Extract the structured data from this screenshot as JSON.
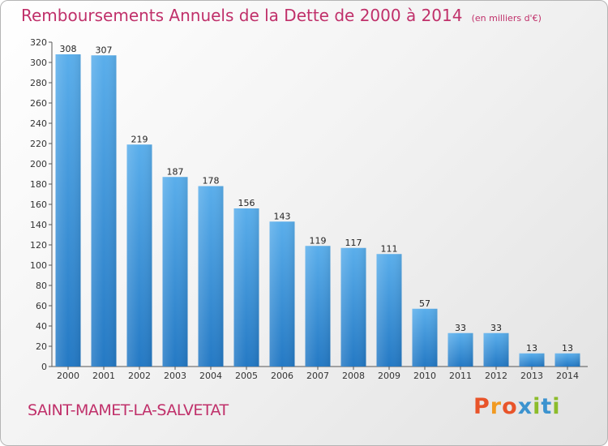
{
  "header": {
    "title": "Remboursements Annuels de la Dette de 2000 à 2014",
    "unit": "(en milliers d'€)"
  },
  "footer": {
    "commune": "SAINT-MAMET-LA-SALVETAT",
    "brand": "Proxiti"
  },
  "colors": {
    "title": "#c0306a",
    "bar_top": "#5aaeeb",
    "bar_bottom": "#2479c4",
    "axis": "#555555"
  },
  "chart_data": {
    "type": "bar",
    "title": "Remboursements Annuels de la Dette de 2000 à 2014",
    "categories": [
      "2000",
      "2001",
      "2002",
      "2003",
      "2004",
      "2005",
      "2006",
      "2007",
      "2008",
      "2009",
      "2010",
      "2011",
      "2012",
      "2013",
      "2014"
    ],
    "values": [
      308,
      307,
      219,
      187,
      178,
      156,
      143,
      119,
      117,
      111,
      57,
      33,
      33,
      13,
      13
    ],
    "ylim": [
      0,
      320
    ],
    "yticks": [
      0,
      20,
      40,
      60,
      80,
      100,
      120,
      140,
      160,
      180,
      200,
      220,
      240,
      260,
      280,
      300,
      320
    ],
    "xlabel": "",
    "ylabel": "",
    "grid": false,
    "data_labels": true
  }
}
